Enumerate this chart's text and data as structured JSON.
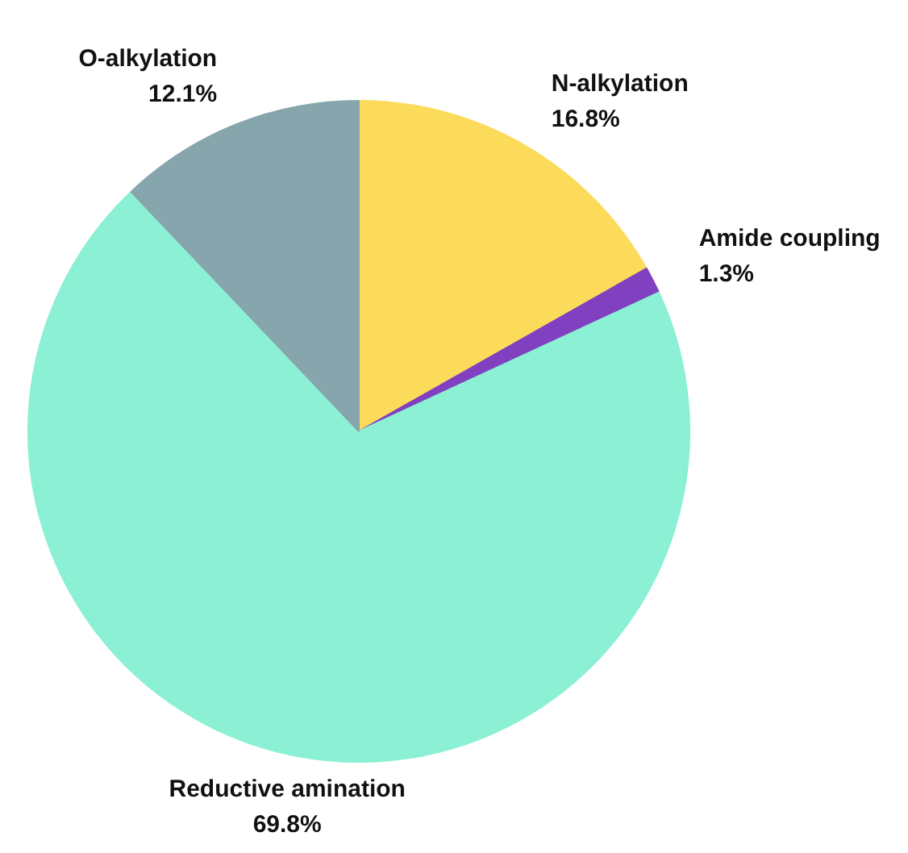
{
  "chart_data": {
    "type": "pie",
    "categories": [
      "N-alkylation",
      "Amide coupling",
      "Reductive amination",
      "O-alkylation"
    ],
    "values": [
      16.8,
      1.3,
      69.8,
      12.1
    ],
    "value_labels": [
      "16.8%",
      "1.3%",
      "69.8%",
      "12.1%"
    ],
    "colors": [
      "#fddb5a",
      "#8040c0",
      "#8bf0d4",
      "#87a5ad"
    ]
  }
}
